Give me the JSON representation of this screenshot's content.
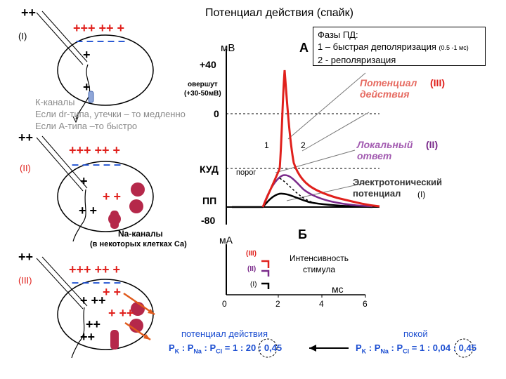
{
  "title": "Потенциал действия (спайк)",
  "cells": {
    "c1": {
      "label": "(I)"
    },
    "c2": {
      "label": "(II)"
    },
    "c3": {
      "label": "(III)"
    }
  },
  "k_channels": {
    "line1": "К-каналы",
    "line2": "Если dr-типа, утечки – то медленно",
    "line3": "Если А-типа –то быстро"
  },
  "na_channels": {
    "label": "Na-каналы",
    "note": "(в некоторых клетках Са)"
  },
  "phases_box": {
    "title": "Фазы ПД:",
    "phase1": "1 – быстрая деполяризация",
    "phase1_note": "(0.5 -1 мс)",
    "phase2": "2 - реполяризация"
  },
  "graph_a": {
    "panel": "А",
    "unit": "мВ",
    "ticks": [
      "+40",
      "0",
      "КУД",
      "ПП",
      "-80"
    ],
    "overshoot": "овершут\n(+30-50мВ)",
    "threshold": "порог",
    "phase_1": "1",
    "phase_2": "2",
    "labels": {
      "ap_line1": "Потенциал",
      "ap_line2": "действия",
      "ap_num": "(III)",
      "local_line1": "Локальный",
      "local_line2": "ответ",
      "local_num": "(II)",
      "electro_line1": "Электротонический",
      "electro_line2": "потенциал",
      "electro_num": "(I)"
    }
  },
  "graph_b": {
    "panel": "Б",
    "unit": "мА",
    "x_unit": "мс",
    "x_ticks": [
      "0",
      "2",
      "4",
      "6"
    ],
    "legend": [
      "(III)",
      "(II)",
      "(I)"
    ],
    "stim_line1": "Интенсивность",
    "stim_line2": "стимула"
  },
  "bottom": {
    "ap_caption": "потенциал действия",
    "rest_caption": "покой",
    "ap_ratio": {
      "pk": "P",
      "pk_sub": "K",
      "pna": "P",
      "pna_sub": "Na",
      "pcl": "P",
      "pcl_sub": "Cl",
      "v1": "1",
      "v2": "20",
      "v3": "0,45"
    },
    "rest_ratio": {
      "pk": "P",
      "pk_sub": "K",
      "pna": "P",
      "pna_sub": "Na",
      "pcl": "P",
      "pcl_sub": "Cl",
      "v1": "1",
      "v2": "0,04",
      "v3": "0,45"
    }
  }
}
